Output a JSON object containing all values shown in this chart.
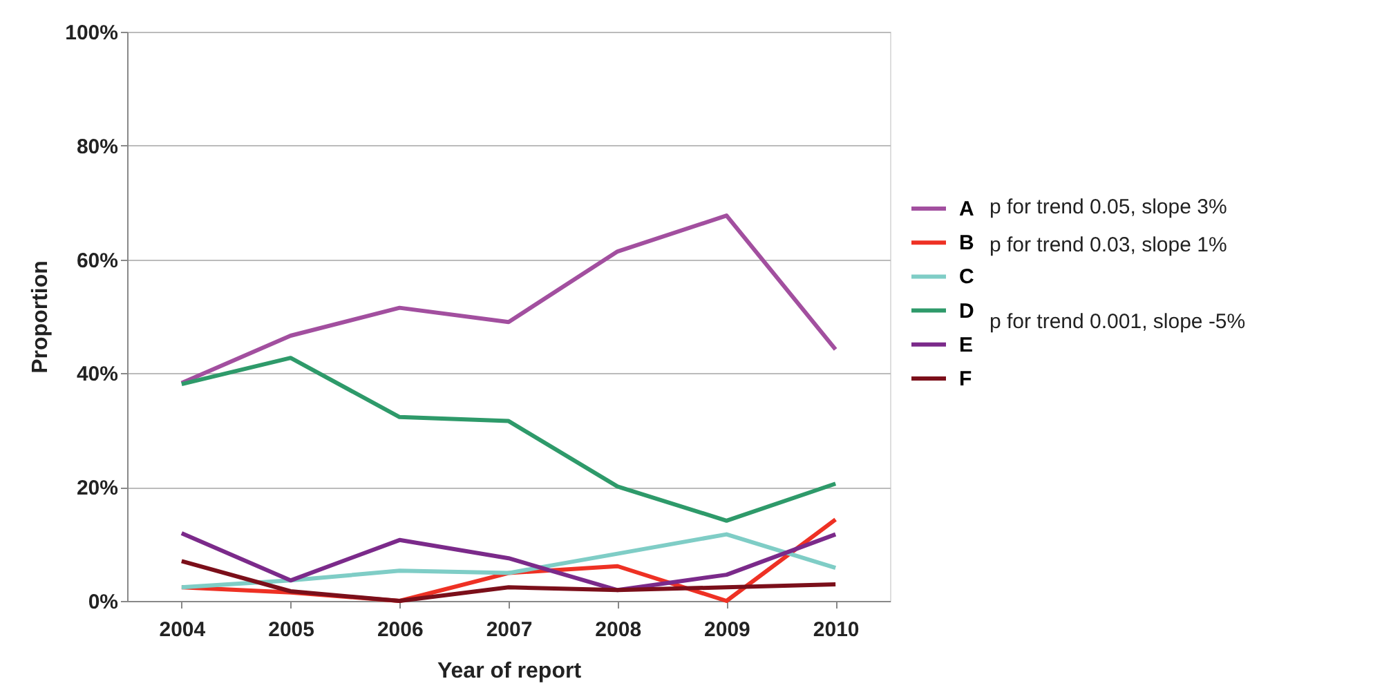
{
  "chart_data": {
    "type": "line",
    "xlabel": "Year of report",
    "ylabel": "Proportion",
    "categories": [
      "2004",
      "2005",
      "2006",
      "2007",
      "2008",
      "2009",
      "2010"
    ],
    "series": [
      {
        "name": "A",
        "color": "#a24f9f",
        "values": [
          38.3,
          46.6,
          51.5,
          49,
          61.4,
          67.7,
          44.2
        ]
      },
      {
        "name": "B",
        "color": "#ee3124",
        "values": [
          2.4,
          1.5,
          0,
          4.9,
          6.1,
          0,
          14.3
        ]
      },
      {
        "name": "C",
        "color": "#7fcdc6",
        "values": [
          2.4,
          3.6,
          5.3,
          4.9,
          8.3,
          11.7,
          5.8
        ]
      },
      {
        "name": "D",
        "color": "#2e9a6a",
        "values": [
          38.1,
          42.7,
          32.3,
          31.6,
          20.1,
          14.1,
          20.6
        ]
      },
      {
        "name": "E",
        "color": "#7b2a8a",
        "values": [
          11.9,
          3.6,
          10.7,
          7.5,
          1.9,
          4.6,
          11.7
        ]
      },
      {
        "name": "F",
        "color": "#7b0f1a",
        "values": [
          7,
          1.7,
          0,
          2.4,
          1.9,
          2.4,
          2.9
        ]
      }
    ],
    "ylim": [
      0,
      100
    ],
    "yticks": [
      {
        "value": 0,
        "label": "0%"
      },
      {
        "value": 20,
        "label": "20%"
      },
      {
        "value": 40,
        "label": "40%"
      },
      {
        "value": 60,
        "label": "60%"
      },
      {
        "value": 80,
        "label": "80%"
      },
      {
        "value": 100,
        "label": "100%"
      }
    ],
    "annotations": [
      "p for trend 0.05, slope 3%",
      "p for trend 0.03, slope 1%",
      "p for trend 0.001, slope -5%"
    ],
    "grid": "y",
    "legend": "right",
    "marker": "none",
    "line_style": "solid"
  }
}
